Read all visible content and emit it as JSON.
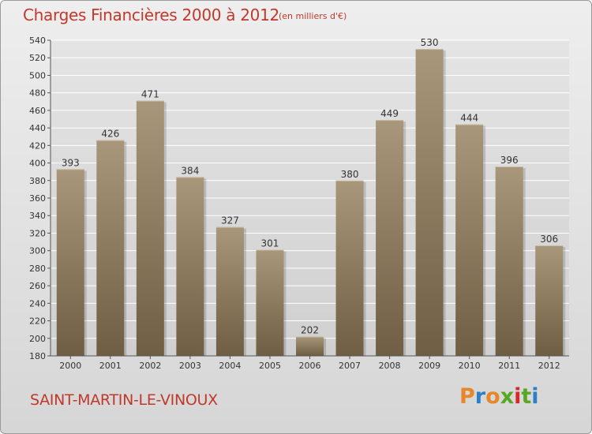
{
  "header": {
    "title": "Charges Financières 2000 à 2012",
    "subtitle": "(en milliers d'€)"
  },
  "footer": {
    "commune": "SAINT-MARTIN-LE-VINOUX",
    "brand": "Proxiti",
    "brand_colors": [
      "#e8862a",
      "#2a7fc8",
      "#e8862a",
      "#58a826",
      "#d9262f",
      "#58a826",
      "#2a7fc8"
    ]
  },
  "chart_data": {
    "type": "bar",
    "categories": [
      "2000",
      "2001",
      "2002",
      "2003",
      "2004",
      "2005",
      "2006",
      "2007",
      "2008",
      "2009",
      "2010",
      "2011",
      "2012"
    ],
    "values": [
      393,
      426,
      471,
      384,
      327,
      301,
      202,
      380,
      449,
      530,
      444,
      396,
      306
    ],
    "ylim": [
      180,
      540
    ],
    "yticks": [
      180,
      200,
      220,
      240,
      260,
      280,
      300,
      320,
      340,
      360,
      380,
      400,
      420,
      440,
      460,
      480,
      500,
      520,
      540
    ],
    "grid": true,
    "bar_color": "#8c7a5c",
    "data_labels": true
  }
}
